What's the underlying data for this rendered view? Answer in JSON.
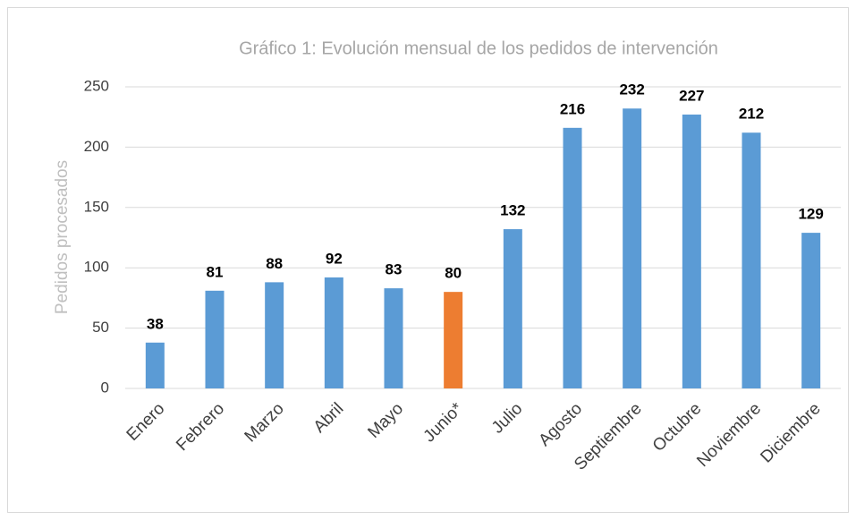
{
  "chart_data": {
    "type": "bar",
    "title": "Gráfico 1: Evolución mensual de los pedidos de intervención",
    "ylabel": "Pedidos procesados",
    "categories": [
      "Enero",
      "Febrero",
      "Marzo",
      "Abril",
      "Mayo",
      "Junio*",
      "Julio",
      "Agosto",
      "Septiembre",
      "Octubre",
      "Noviembre",
      "Diciembre"
    ],
    "values": [
      38,
      81,
      88,
      92,
      83,
      80,
      132,
      216,
      232,
      227,
      212,
      129
    ],
    "colors": [
      "#5b9bd5",
      "#5b9bd5",
      "#5b9bd5",
      "#5b9bd5",
      "#5b9bd5",
      "#ed7d31",
      "#5b9bd5",
      "#5b9bd5",
      "#5b9bd5",
      "#5b9bd5",
      "#5b9bd5",
      "#5b9bd5"
    ],
    "ylim": [
      0,
      250
    ],
    "yticks": [
      0,
      50,
      100,
      150,
      200,
      250
    ],
    "grid": true
  }
}
